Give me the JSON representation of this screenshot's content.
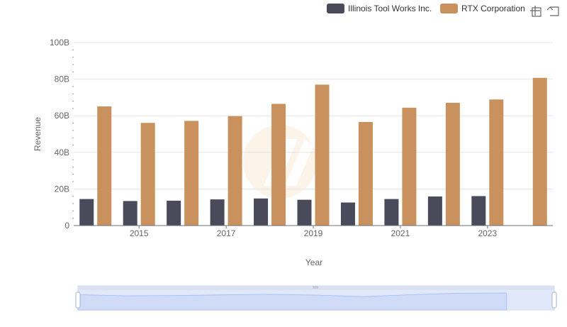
{
  "toolbox": {
    "zoom_icon": "zoom-select-icon",
    "restore_icon": "restore-icon"
  },
  "chart_data": {
    "type": "bar",
    "title": "",
    "xlabel": "Year",
    "ylabel": "Revenue",
    "ylim": [
      0,
      100000000000
    ],
    "y_ticks": [
      "0",
      "20B",
      "40B",
      "60B",
      "80B",
      "100B"
    ],
    "x_tick_labels": [
      "2015",
      "2017",
      "2019",
      "2021",
      "2023"
    ],
    "categories": [
      "2014",
      "2015",
      "2016",
      "2017",
      "2018",
      "2019",
      "2020",
      "2021",
      "2022",
      "2023",
      "2024"
    ],
    "grid": true,
    "legend_position": "top-right",
    "series": [
      {
        "name": "Illinois Tool Works Inc.",
        "color": "#4a4a5a",
        "values": [
          14500000000,
          13400000000,
          13600000000,
          14300000000,
          14800000000,
          14100000000,
          12600000000,
          14500000000,
          15900000000,
          16100000000,
          null
        ]
      },
      {
        "name": "RTX Corporation",
        "color": "#c8915d",
        "values": [
          65100000000,
          56100000000,
          57200000000,
          59800000000,
          66500000000,
          77000000000,
          56600000000,
          64400000000,
          67100000000,
          68900000000,
          80700000000
        ]
      }
    ]
  }
}
